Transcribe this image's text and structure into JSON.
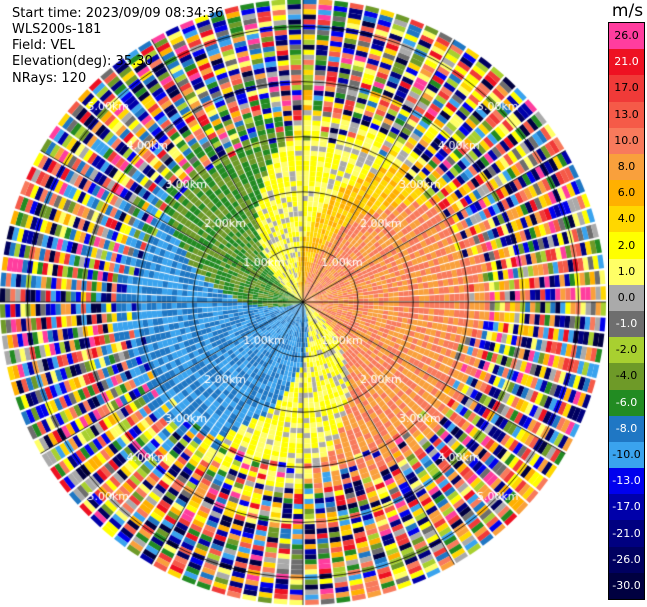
{
  "header": {
    "start_time": "Start time: 2023/09/09 08:34:36",
    "instrument": "WLS200s-181",
    "field": "Field: VEL",
    "elevation": "Elevation(deg): 35.30",
    "nrays": "NRays: 120"
  },
  "colorbar": {
    "unit": "m/s",
    "entries": [
      {
        "label": "26.0",
        "color": "#ff3d9e",
        "text": "#000000"
      },
      {
        "label": "21.0",
        "color": "#ee1122",
        "text": "#ffffff"
      },
      {
        "label": "17.0",
        "color": "#f03a38",
        "text": "#000000"
      },
      {
        "label": "13.0",
        "color": "#f55a48",
        "text": "#000000"
      },
      {
        "label": "10.0",
        "color": "#f87a5c",
        "text": "#000000"
      },
      {
        "label": "8.0",
        "color": "#f9a03c",
        "text": "#000000"
      },
      {
        "label": "6.0",
        "color": "#ffb000",
        "text": "#000000"
      },
      {
        "label": "4.0",
        "color": "#ffd700",
        "text": "#000000"
      },
      {
        "label": "2.0",
        "color": "#ffff00",
        "text": "#000000"
      },
      {
        "label": "1.0",
        "color": "#ffff66",
        "text": "#000000"
      },
      {
        "label": "0.0",
        "color": "#aaaaaa",
        "text": "#000000"
      },
      {
        "label": "-1.0",
        "color": "#6e6e6e",
        "text": "#ffffff"
      },
      {
        "label": "-2.0",
        "color": "#a8d030",
        "text": "#000000"
      },
      {
        "label": "-4.0",
        "color": "#6e9a28",
        "text": "#000000"
      },
      {
        "label": "-6.0",
        "color": "#228b22",
        "text": "#ffffff"
      },
      {
        "label": "-8.0",
        "color": "#1f77c4",
        "text": "#ffffff"
      },
      {
        "label": "-10.0",
        "color": "#3aa3ee",
        "text": "#000000"
      },
      {
        "label": "-13.0",
        "color": "#0000ee",
        "text": "#ffffff"
      },
      {
        "label": "-17.0",
        "color": "#0000aa",
        "text": "#ffffff"
      },
      {
        "label": "-21.0",
        "color": "#000080",
        "text": "#ffffff"
      },
      {
        "label": "-26.0",
        "color": "#000060",
        "text": "#ffffff"
      },
      {
        "label": "-30.0",
        "color": "#000040",
        "text": "#ffffff"
      }
    ]
  },
  "chart_data": {
    "type": "ppi",
    "field": "VEL",
    "units": "m/s",
    "nrays": 120,
    "range_max_km": 5.5,
    "range_ring_labels": [
      "1.00km",
      "2.00km",
      "3.00km",
      "4.00km",
      "5.00km"
    ],
    "range_rings_km": [
      1,
      2,
      3,
      4,
      5
    ],
    "color_levels": [
      -30,
      -26,
      -21,
      -17,
      -13,
      -10,
      -8,
      -6,
      -4,
      -2,
      -1,
      0,
      1,
      2,
      4,
      6,
      8,
      10,
      13,
      17,
      21,
      26
    ],
    "velocity_pattern": {
      "description_ranges_km": [
        0,
        3.2
      ],
      "dominant": [
        {
          "azimuth_deg": [
            0,
            120
          ],
          "value": 10
        },
        {
          "azimuth_deg": [
            120,
            160
          ],
          "value": 2
        },
        {
          "azimuth_deg": [
            160,
            250
          ],
          "value": -8
        },
        {
          "azimuth_deg": [
            250,
            300
          ],
          "value": -4
        },
        {
          "azimuth_deg": [
            300,
            340
          ],
          "value": 2
        },
        {
          "azimuth_deg": [
            340,
            360
          ],
          "value": 6
        }
      ],
      "noise_beyond_km": 3.3
    }
  }
}
